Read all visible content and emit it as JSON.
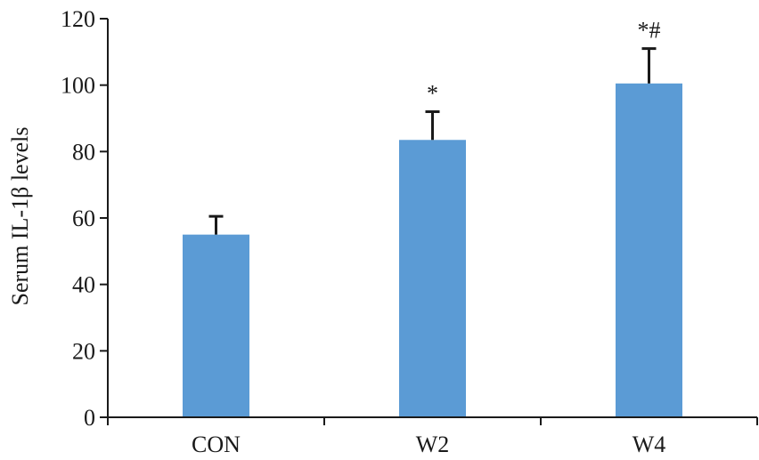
{
  "chart_data": {
    "type": "bar",
    "title": "",
    "xlabel": "",
    "ylabel": "Serum IL-1β levels",
    "categories": [
      "CON",
      "W2",
      "W4"
    ],
    "values": [
      55,
      83.5,
      100.5
    ],
    "error_bars": [
      5.5,
      8.5,
      10.5
    ],
    "annotations": [
      "",
      "*",
      "*#"
    ],
    "ylim": [
      0,
      120
    ],
    "yticks": [
      0,
      20,
      40,
      60,
      80,
      100,
      120
    ],
    "ytick_labels": [
      "0",
      "20",
      "40",
      "60",
      "80",
      "100",
      "120"
    ],
    "bar_color": "#5b9bd5",
    "grid": false,
    "legend": "none"
  }
}
